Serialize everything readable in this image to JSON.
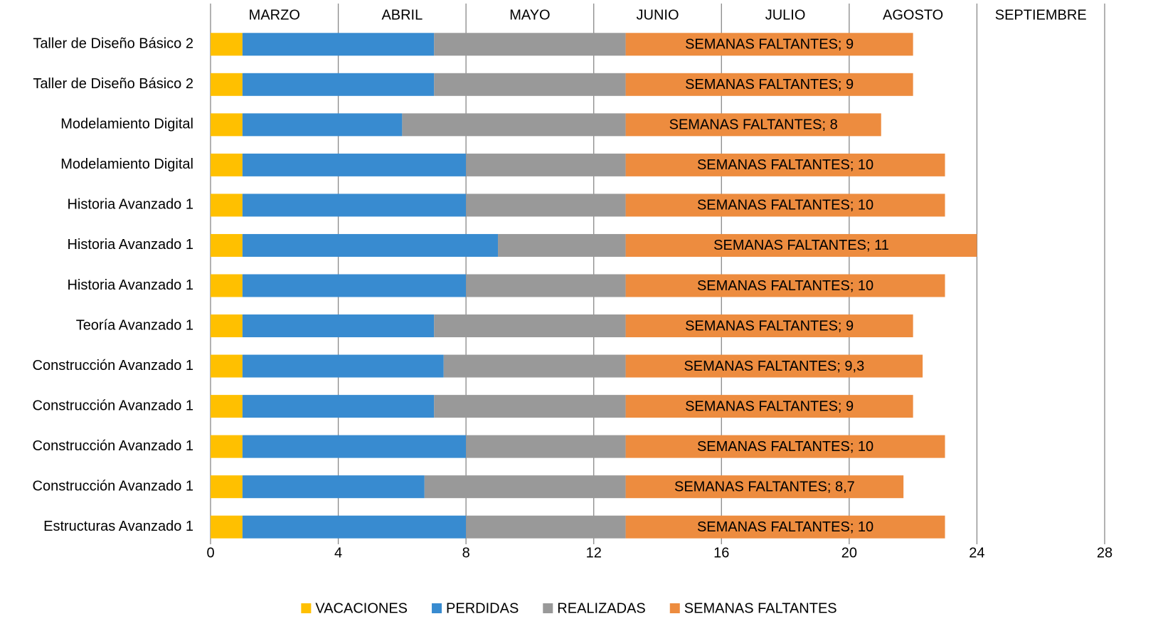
{
  "chart_data": {
    "type": "stacked_bar_horizontal",
    "categories": [
      "Taller de Diseño Básico 2",
      "Taller de Diseño Básico 2",
      "Modelamiento Digital",
      "Modelamiento Digital",
      "Historia Avanzado 1",
      "Historia Avanzado 1",
      "Historia Avanzado 1",
      "Teoría Avanzado 1",
      "Construcción Avanzado 1",
      "Construcción Avanzado 1",
      "Construcción Avanzado 1",
      "Construcción Avanzado 1",
      "Estructuras Avanzado 1"
    ],
    "series": [
      {
        "name": "VACACIONES",
        "color": "#ffc000",
        "values": [
          1,
          1,
          1,
          1,
          1,
          1,
          1,
          1,
          1,
          1,
          1,
          1,
          1
        ]
      },
      {
        "name": "PERDIDAS",
        "color": "#388bd0",
        "values": [
          6,
          6,
          5,
          7,
          7,
          8,
          7,
          6,
          6.3,
          6,
          7,
          5.7,
          7
        ]
      },
      {
        "name": "REALIZADAS",
        "color": "#999999",
        "values": [
          6,
          6,
          7,
          5,
          5,
          4,
          5,
          6,
          5.7,
          6,
          5,
          6.3,
          5
        ]
      },
      {
        "name": "SEMANAS FALTANTES",
        "color": "#ed8c3f",
        "values": [
          9,
          9,
          8,
          10,
          10,
          11,
          10,
          9,
          9.3,
          9,
          10,
          8.7,
          10
        ],
        "value_labels": [
          "SEMANAS FALTANTES; 9",
          "SEMANAS FALTANTES; 9",
          "SEMANAS FALTANTES; 8",
          "SEMANAS FALTANTES; 10",
          "SEMANAS FALTANTES; 10",
          "SEMANAS FALTANTES; 11",
          "SEMANAS FALTANTES; 10",
          "SEMANAS FALTANTES; 9",
          "SEMANAS FALTANTES; 9,3",
          "SEMANAS FALTANTES; 9",
          "SEMANAS FALTANTES; 10",
          "SEMANAS FALTANTES; 8,7",
          "SEMANAS FALTANTES; 10"
        ]
      }
    ],
    "months": [
      "MARZO",
      "ABRIL",
      "MAYO",
      "JUNIO",
      "JULIO",
      "AGOSTO",
      "SEPTIEMBRE"
    ],
    "xlim": [
      0,
      28
    ],
    "xticks": [
      0,
      4,
      8,
      12,
      16,
      20,
      24,
      28
    ],
    "grid": true,
    "legend": "bottom"
  }
}
